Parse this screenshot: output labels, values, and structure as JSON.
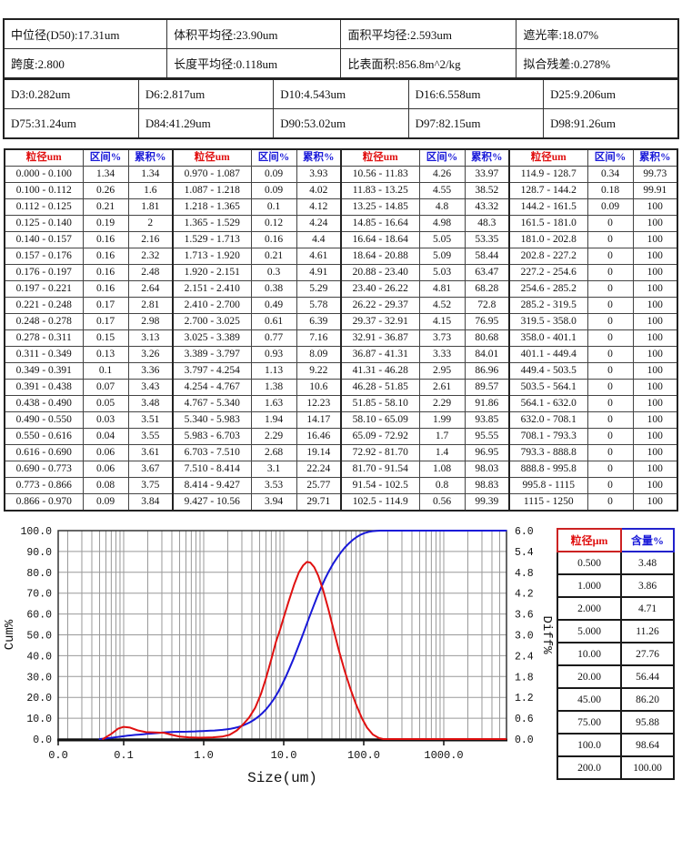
{
  "summary_table": {
    "rows": [
      [
        "中位径(D50):17.31um",
        "体积平均径:23.90um",
        "面积平均径:2.593um",
        "遮光率:18.07%"
      ],
      [
        "跨度:2.800",
        "长度平均径:0.118um",
        "比表面积:856.8m^2/kg",
        "拟合残差:0.278%"
      ]
    ]
  },
  "d_values": {
    "rows": [
      [
        "D3:0.282um",
        "D6:2.817um",
        "D10:4.543um",
        "D16:6.558um",
        "D25:9.206um"
      ],
      [
        "D75:31.24um",
        "D84:41.29um",
        "D90:53.02um",
        "D97:82.15um",
        "D98:91.26um"
      ]
    ]
  },
  "main_table": {
    "headers": {
      "size": "粒径um",
      "interval": "区间%",
      "cum": "累积%"
    },
    "groups": [
      [
        [
          "0.000 - 0.100",
          "1.34",
          "1.34"
        ],
        [
          "0.100 - 0.112",
          "0.26",
          "1.6"
        ],
        [
          "0.112 - 0.125",
          "0.21",
          "1.81"
        ],
        [
          "0.125 - 0.140",
          "0.19",
          "2"
        ],
        [
          "0.140 - 0.157",
          "0.16",
          "2.16"
        ],
        [
          "0.157 - 0.176",
          "0.16",
          "2.32"
        ],
        [
          "0.176 - 0.197",
          "0.16",
          "2.48"
        ],
        [
          "0.197 - 0.221",
          "0.16",
          "2.64"
        ],
        [
          "0.221 - 0.248",
          "0.17",
          "2.81"
        ],
        [
          "0.248 - 0.278",
          "0.17",
          "2.98"
        ],
        [
          "0.278 - 0.311",
          "0.15",
          "3.13"
        ],
        [
          "0.311 - 0.349",
          "0.13",
          "3.26"
        ],
        [
          "0.349 - 0.391",
          "0.1",
          "3.36"
        ],
        [
          "0.391 - 0.438",
          "0.07",
          "3.43"
        ],
        [
          "0.438 - 0.490",
          "0.05",
          "3.48"
        ],
        [
          "0.490 - 0.550",
          "0.03",
          "3.51"
        ],
        [
          "0.550 - 0.616",
          "0.04",
          "3.55"
        ],
        [
          "0.616 - 0.690",
          "0.06",
          "3.61"
        ],
        [
          "0.690 - 0.773",
          "0.06",
          "3.67"
        ],
        [
          "0.773 - 0.866",
          "0.08",
          "3.75"
        ],
        [
          "0.866 - 0.970",
          "0.09",
          "3.84"
        ]
      ],
      [
        [
          "0.970 - 1.087",
          "0.09",
          "3.93"
        ],
        [
          "1.087 - 1.218",
          "0.09",
          "4.02"
        ],
        [
          "1.218 - 1.365",
          "0.1",
          "4.12"
        ],
        [
          "1.365 - 1.529",
          "0.12",
          "4.24"
        ],
        [
          "1.529 - 1.713",
          "0.16",
          "4.4"
        ],
        [
          "1.713 - 1.920",
          "0.21",
          "4.61"
        ],
        [
          "1.920 - 2.151",
          "0.3",
          "4.91"
        ],
        [
          "2.151 - 2.410",
          "0.38",
          "5.29"
        ],
        [
          "2.410 - 2.700",
          "0.49",
          "5.78"
        ],
        [
          "2.700 - 3.025",
          "0.61",
          "6.39"
        ],
        [
          "3.025 - 3.389",
          "0.77",
          "7.16"
        ],
        [
          "3.389 - 3.797",
          "0.93",
          "8.09"
        ],
        [
          "3.797 - 4.254",
          "1.13",
          "9.22"
        ],
        [
          "4.254 - 4.767",
          "1.38",
          "10.6"
        ],
        [
          "4.767 - 5.340",
          "1.63",
          "12.23"
        ],
        [
          "5.340 - 5.983",
          "1.94",
          "14.17"
        ],
        [
          "5.983 - 6.703",
          "2.29",
          "16.46"
        ],
        [
          "6.703 - 7.510",
          "2.68",
          "19.14"
        ],
        [
          "7.510 - 8.414",
          "3.1",
          "22.24"
        ],
        [
          "8.414 - 9.427",
          "3.53",
          "25.77"
        ],
        [
          "9.427 - 10.56",
          "3.94",
          "29.71"
        ]
      ],
      [
        [
          "10.56 - 11.83",
          "4.26",
          "33.97"
        ],
        [
          "11.83 - 13.25",
          "4.55",
          "38.52"
        ],
        [
          "13.25 - 14.85",
          "4.8",
          "43.32"
        ],
        [
          "14.85 - 16.64",
          "4.98",
          "48.3"
        ],
        [
          "16.64 - 18.64",
          "5.05",
          "53.35"
        ],
        [
          "18.64 - 20.88",
          "5.09",
          "58.44"
        ],
        [
          "20.88 - 23.40",
          "5.03",
          "63.47"
        ],
        [
          "23.40 - 26.22",
          "4.81",
          "68.28"
        ],
        [
          "26.22 - 29.37",
          "4.52",
          "72.8"
        ],
        [
          "29.37 - 32.91",
          "4.15",
          "76.95"
        ],
        [
          "32.91 - 36.87",
          "3.73",
          "80.68"
        ],
        [
          "36.87 - 41.31",
          "3.33",
          "84.01"
        ],
        [
          "41.31 - 46.28",
          "2.95",
          "86.96"
        ],
        [
          "46.28 - 51.85",
          "2.61",
          "89.57"
        ],
        [
          "51.85 - 58.10",
          "2.29",
          "91.86"
        ],
        [
          "58.10 - 65.09",
          "1.99",
          "93.85"
        ],
        [
          "65.09 - 72.92",
          "1.7",
          "95.55"
        ],
        [
          "72.92 - 81.70",
          "1.4",
          "96.95"
        ],
        [
          "81.70 - 91.54",
          "1.08",
          "98.03"
        ],
        [
          "91.54 - 102.5",
          "0.8",
          "98.83"
        ],
        [
          "102.5 - 114.9",
          "0.56",
          "99.39"
        ]
      ],
      [
        [
          "114.9 - 128.7",
          "0.34",
          "99.73"
        ],
        [
          "128.7 - 144.2",
          "0.18",
          "99.91"
        ],
        [
          "144.2 - 161.5",
          "0.09",
          "100"
        ],
        [
          "161.5 - 181.0",
          "0",
          "100"
        ],
        [
          "181.0 - 202.8",
          "0",
          "100"
        ],
        [
          "202.8 - 227.2",
          "0",
          "100"
        ],
        [
          "227.2 - 254.6",
          "0",
          "100"
        ],
        [
          "254.6 - 285.2",
          "0",
          "100"
        ],
        [
          "285.2 - 319.5",
          "0",
          "100"
        ],
        [
          "319.5 - 358.0",
          "0",
          "100"
        ],
        [
          "358.0 - 401.1",
          "0",
          "100"
        ],
        [
          "401.1 - 449.4",
          "0",
          "100"
        ],
        [
          "449.4 - 503.5",
          "0",
          "100"
        ],
        [
          "503.5 - 564.1",
          "0",
          "100"
        ],
        [
          "564.1 - 632.0",
          "0",
          "100"
        ],
        [
          "632.0 - 708.1",
          "0",
          "100"
        ],
        [
          "708.1 - 793.3",
          "0",
          "100"
        ],
        [
          "793.3 - 888.8",
          "0",
          "100"
        ],
        [
          "888.8 - 995.8",
          "0",
          "100"
        ],
        [
          "995.8 - 1115",
          "0",
          "100"
        ],
        [
          "1115 - 1250",
          "0",
          "100"
        ]
      ]
    ]
  },
  "side_table": {
    "headers": [
      "粒径μm",
      "含量%"
    ],
    "rows": [
      [
        "0.500",
        "3.48"
      ],
      [
        "1.000",
        "3.86"
      ],
      [
        "2.000",
        "4.71"
      ],
      [
        "5.000",
        "11.26"
      ],
      [
        "10.00",
        "27.76"
      ],
      [
        "20.00",
        "56.44"
      ],
      [
        "45.00",
        "86.20"
      ],
      [
        "75.00",
        "95.88"
      ],
      [
        "100.0",
        "98.64"
      ],
      [
        "200.0",
        "100.00"
      ]
    ]
  },
  "chart_data": {
    "type": "line",
    "title": "",
    "xlabel": "Size(um)",
    "ylabel_left": "Cum%",
    "ylabel_right": "Diff%",
    "x_scale": "log",
    "x_range": [
      0.017,
      6000
    ],
    "x_tick_labels": [
      "0.0",
      "0.1",
      "1.0",
      "10.0",
      "100.0",
      "1000.0"
    ],
    "x_tick_values": [
      null,
      0.1,
      1,
      10,
      100,
      1000
    ],
    "y_left": {
      "min": 0,
      "max": 100,
      "step": 10,
      "ticks": [
        "0.0",
        "10.0",
        "20.0",
        "30.0",
        "40.0",
        "50.0",
        "60.0",
        "70.0",
        "80.0",
        "90.0",
        "100.0"
      ]
    },
    "y_right": {
      "min": 0,
      "max": 6.0,
      "step": 0.6,
      "ticks": [
        "0.0",
        "0.6",
        "1.2",
        "1.8",
        "2.4",
        "3.0",
        "3.6",
        "4.2",
        "4.8",
        "5.4",
        "6.0"
      ]
    },
    "grid": true,
    "legend": "none",
    "series": [
      {
        "name": "cumulative",
        "axis": "left",
        "color": "#1818d8",
        "points": [
          [
            0.05,
            0
          ],
          [
            0.07,
            0.6
          ],
          [
            0.1,
            1.34
          ],
          [
            0.112,
            1.6
          ],
          [
            0.125,
            1.81
          ],
          [
            0.14,
            2
          ],
          [
            0.157,
            2.16
          ],
          [
            0.176,
            2.32
          ],
          [
            0.197,
            2.48
          ],
          [
            0.221,
            2.64
          ],
          [
            0.248,
            2.81
          ],
          [
            0.278,
            2.98
          ],
          [
            0.311,
            3.13
          ],
          [
            0.349,
            3.26
          ],
          [
            0.391,
            3.36
          ],
          [
            0.438,
            3.43
          ],
          [
            0.49,
            3.48
          ],
          [
            0.55,
            3.51
          ],
          [
            0.616,
            3.55
          ],
          [
            0.69,
            3.61
          ],
          [
            0.773,
            3.67
          ],
          [
            0.866,
            3.75
          ],
          [
            0.97,
            3.84
          ],
          [
            1.087,
            3.93
          ],
          [
            1.218,
            4.02
          ],
          [
            1.365,
            4.12
          ],
          [
            1.529,
            4.24
          ],
          [
            1.713,
            4.4
          ],
          [
            1.92,
            4.61
          ],
          [
            2.151,
            4.91
          ],
          [
            2.41,
            5.29
          ],
          [
            2.7,
            5.78
          ],
          [
            3.025,
            6.39
          ],
          [
            3.389,
            7.16
          ],
          [
            3.797,
            8.09
          ],
          [
            4.254,
            9.22
          ],
          [
            4.767,
            10.6
          ],
          [
            5.34,
            12.23
          ],
          [
            5.983,
            14.17
          ],
          [
            6.703,
            16.46
          ],
          [
            7.51,
            19.14
          ],
          [
            8.414,
            22.24
          ],
          [
            9.427,
            25.77
          ],
          [
            10.56,
            29.71
          ],
          [
            11.83,
            33.97
          ],
          [
            13.25,
            38.52
          ],
          [
            14.85,
            43.32
          ],
          [
            16.64,
            48.3
          ],
          [
            18.64,
            53.35
          ],
          [
            20.88,
            58.44
          ],
          [
            23.4,
            63.47
          ],
          [
            26.22,
            68.28
          ],
          [
            29.37,
            72.8
          ],
          [
            32.91,
            76.95
          ],
          [
            36.87,
            80.68
          ],
          [
            41.31,
            84.01
          ],
          [
            46.28,
            86.96
          ],
          [
            51.85,
            89.57
          ],
          [
            58.1,
            91.86
          ],
          [
            65.09,
            93.85
          ],
          [
            72.92,
            95.55
          ],
          [
            81.7,
            96.95
          ],
          [
            91.54,
            98.03
          ],
          [
            102.5,
            98.83
          ],
          [
            114.9,
            99.39
          ],
          [
            128.7,
            99.73
          ],
          [
            144.2,
            99.91
          ],
          [
            161.5,
            100
          ],
          [
            6000,
            100
          ]
        ]
      },
      {
        "name": "differential",
        "axis": "right",
        "color": "#e01010",
        "points": [
          [
            0.055,
            0
          ],
          [
            0.07,
            0.15
          ],
          [
            0.085,
            0.3
          ],
          [
            0.1,
            0.35
          ],
          [
            0.12,
            0.33
          ],
          [
            0.15,
            0.25
          ],
          [
            0.19,
            0.2
          ],
          [
            0.25,
            0.19
          ],
          [
            0.32,
            0.18
          ],
          [
            0.4,
            0.12
          ],
          [
            0.5,
            0.07
          ],
          [
            0.65,
            0.05
          ],
          [
            0.9,
            0.04
          ],
          [
            1.3,
            0.05
          ],
          [
            1.7,
            0.07
          ],
          [
            2.1,
            0.12
          ],
          [
            2.6,
            0.25
          ],
          [
            3.1,
            0.42
          ],
          [
            3.7,
            0.62
          ],
          [
            4.4,
            0.9
          ],
          [
            5.2,
            1.3
          ],
          [
            6,
            1.75
          ],
          [
            7,
            2.3
          ],
          [
            8,
            2.8
          ],
          [
            9,
            3.15
          ],
          [
            10,
            3.5
          ],
          [
            11.5,
            3.95
          ],
          [
            13.5,
            4.45
          ],
          [
            15.5,
            4.8
          ],
          [
            17.5,
            5.0
          ],
          [
            19.5,
            5.1
          ],
          [
            21.5,
            5.08
          ],
          [
            24,
            4.95
          ],
          [
            27,
            4.7
          ],
          [
            31,
            4.3
          ],
          [
            36,
            3.75
          ],
          [
            42,
            3.15
          ],
          [
            49,
            2.55
          ],
          [
            58,
            1.95
          ],
          [
            68,
            1.45
          ],
          [
            80,
            1.0
          ],
          [
            95,
            0.6
          ],
          [
            110,
            0.33
          ],
          [
            130,
            0.13
          ],
          [
            155,
            0.03
          ],
          [
            175,
            0
          ],
          [
            6000,
            0
          ]
        ]
      }
    ]
  },
  "colors": {
    "accent_red": "#e01010",
    "accent_blue": "#1818d8",
    "grid_gray": "#999999",
    "table_border": "#222222"
  }
}
